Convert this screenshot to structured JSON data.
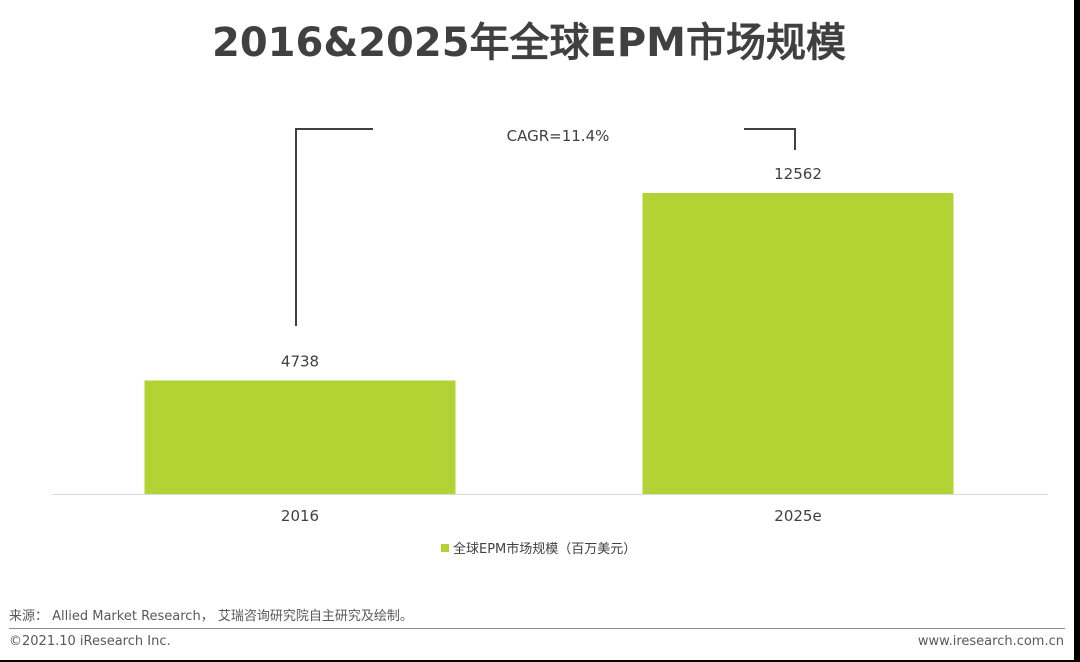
{
  "chart_data": {
    "type": "bar",
    "title": "2016&2025年全球EPM市场规模",
    "categories": [
      "2016",
      "2025e"
    ],
    "series": [
      {
        "name": "全球EPM市场规模（百万美元）",
        "values": [
          4738,
          12562
        ]
      }
    ],
    "data_labels": [
      "4738",
      "12562"
    ],
    "annotation": "CAGR=11.4%",
    "xlabel": "",
    "ylabel": "",
    "ylim": [
      0,
      14000
    ],
    "grid": false,
    "legend_position": "bottom",
    "bar_color": "#b3d335"
  },
  "footer": {
    "source": "来源： Allied Market Research， 艾瑞咨询研究院自主研究及绘制。",
    "copyright": "©2021.10 iResearch Inc.",
    "website": "www.iresearch.com.cn"
  }
}
